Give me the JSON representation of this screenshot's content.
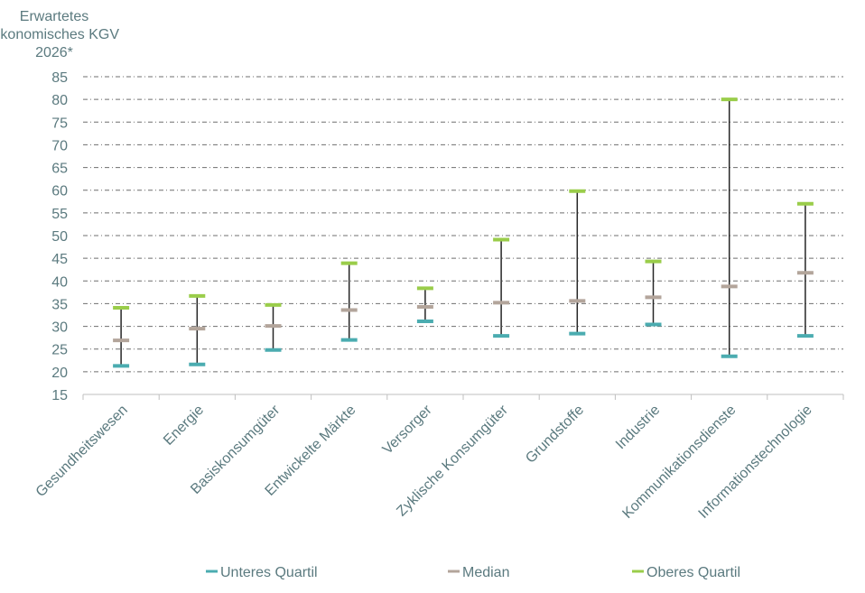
{
  "chart_data": {
    "type": "error-range",
    "ylabel_lines": [
      "Erwartetes",
      "Ökonomisches KGV",
      "2026*"
    ],
    "ylim": [
      15,
      85
    ],
    "yticks": [
      15,
      20,
      25,
      30,
      35,
      40,
      45,
      50,
      55,
      60,
      65,
      70,
      75,
      80,
      85
    ],
    "grid": true,
    "categories": [
      "Gesundheitswesen",
      "Energie",
      "Basiskonsumgüter",
      "Entwickelte Märkte",
      "Versorger",
      "Zyklische Konsumgüter",
      "Grundstoffe",
      "Industrie",
      "Kommunikationsdienste",
      "Informationstechnologie"
    ],
    "series": [
      {
        "name": "Unteres Quartil",
        "color": "#4bacb0",
        "values": [
          21.3,
          21.6,
          24.8,
          27.0,
          31.1,
          27.9,
          28.4,
          30.4,
          23.4,
          27.9
        ]
      },
      {
        "name": "Median",
        "color": "#b3a59b",
        "values": [
          26.9,
          29.5,
          30.1,
          33.6,
          34.3,
          35.2,
          35.6,
          36.4,
          38.8,
          41.8
        ]
      },
      {
        "name": "Oberes Quartil",
        "color": "#9acd4a",
        "values": [
          34.1,
          36.7,
          34.7,
          43.9,
          38.4,
          49.1,
          59.8,
          44.3,
          80.0,
          57.0
        ]
      }
    ],
    "legend_position": "bottom"
  }
}
